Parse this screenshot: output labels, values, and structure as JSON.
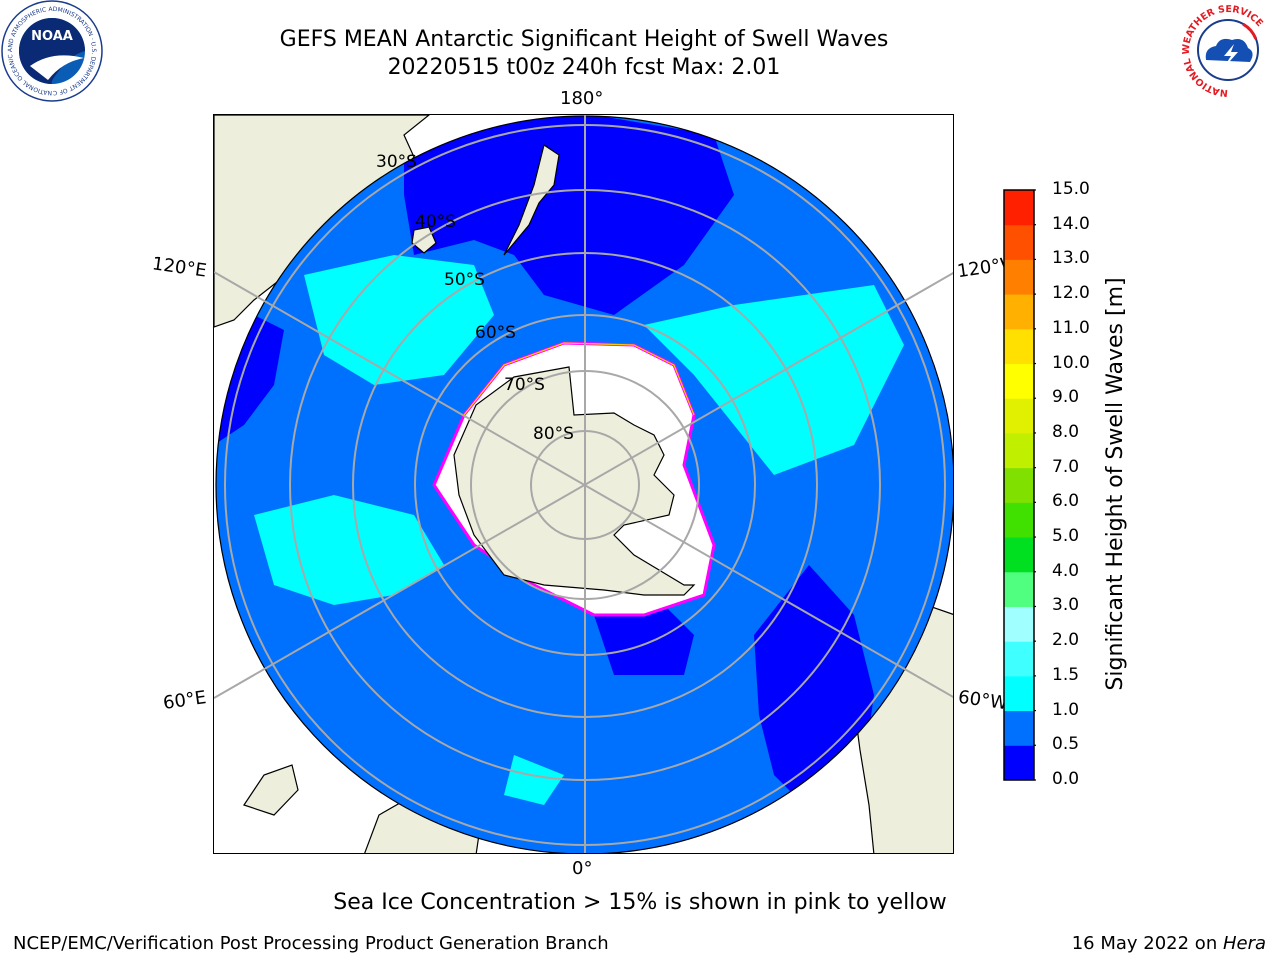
{
  "title": {
    "line1": "GEFS MEAN Antarctic Significant Height of Swell Waves",
    "line2": "20220515 t00z 240h fcst   Max: 2.01"
  },
  "map": {
    "projection": "south-polar-stereographic",
    "longitude_labels": [
      "180°",
      "120°E",
      "120°W",
      "60°E",
      "60°W",
      "0°"
    ],
    "latitude_labels": [
      "30°S",
      "40°S",
      "50°S",
      "60°S",
      "70°S",
      "80°S"
    ],
    "ocean_swell_classes": [
      {
        "range": "0.0–0.5",
        "color": "#0000ff",
        "regions": [
          "southwest Pacific near New Zealand",
          "Tasman Sea",
          "southeast Pacific off South America",
          "south of Australia"
        ]
      },
      {
        "range": "0.5–1.0",
        "color": "#0070ff",
        "regions": [
          "most of Southern Ocean"
        ]
      },
      {
        "range": "1.0–2.0",
        "color": "#00ffff",
        "regions": [
          "patches south of Australia",
          "central South Pacific",
          "southern Indian Ocean"
        ]
      }
    ],
    "land_color": "#eeeedc",
    "sea_ice_color": "#ffffff",
    "sea_ice_edge_colors": [
      "#ff00ff",
      "#ffc800"
    ]
  },
  "colorbar": {
    "title": "Significant Height of Swell Waves [m]",
    "ticks": [
      "0.0",
      "0.5",
      "1.0",
      "1.5",
      "2.0",
      "3.0",
      "4.0",
      "5.0",
      "6.0",
      "7.0",
      "8.0",
      "9.0",
      "10.0",
      "11.0",
      "12.0",
      "13.0",
      "14.0",
      "15.0"
    ],
    "colors": [
      "#0000ff",
      "#0070ff",
      "#00ffff",
      "#40ffff",
      "#a0ffff",
      "#50ff80",
      "#00e020",
      "#40e000",
      "#80e000",
      "#c0f000",
      "#e0f000",
      "#ffff00",
      "#ffe000",
      "#ffb000",
      "#ff8000",
      "#ff5000",
      "#ff2000"
    ]
  },
  "note": "Sea Ice Concentration > 15% is shown in pink to yellow",
  "footer": {
    "left": "NCEP/EMC/Verification Post Processing Product Generation Branch",
    "right_date": "16 May 2022 on ",
    "right_host": "Hera"
  },
  "logos": {
    "left_text": "NOAA",
    "left_ring_text": "NATIONAL OCEANIC AND ATMOSPHERIC ADMINISTRATION · U.S. DEPARTMENT OF COMMERCE",
    "right_ring_text": "NATIONAL WEATHER SERVICE"
  }
}
